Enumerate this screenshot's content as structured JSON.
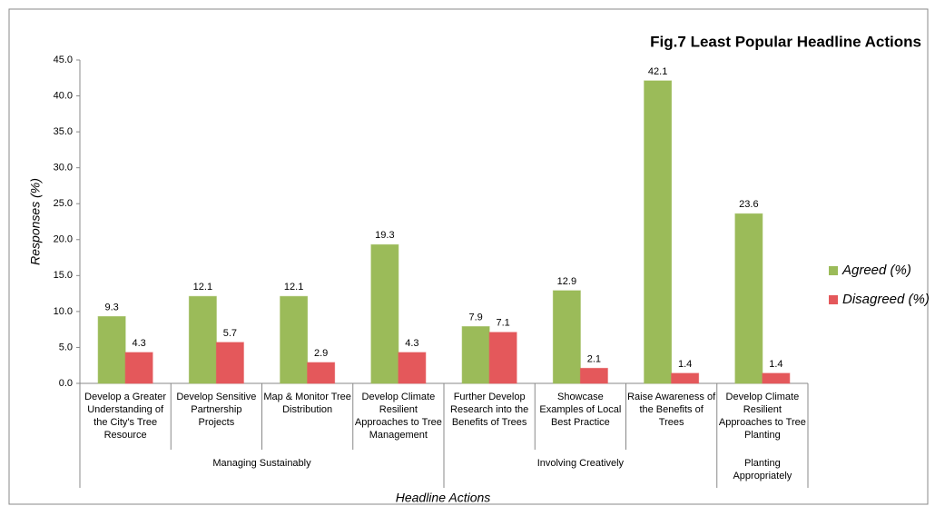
{
  "chart_data": {
    "type": "bar",
    "title": "Fig.7 Least Popular Headline Actions",
    "y_label": "Responses (%)",
    "x_label": "Headline Actions",
    "categories": [
      "Develop a Greater Understanding of the City's Tree Resource",
      "Develop Sensitive Partnership Projects",
      "Map & Monitor Tree Distribution",
      "Develop Climate Resilient Approaches to Tree Management",
      "Further Develop Research into the Benefits of Trees",
      "Showcase Examples of Local Best Practice",
      "Raise Awareness of the Benefits of Trees",
      "Develop Climate Resilient Approaches to Tree Planting"
    ],
    "groups": [
      {
        "label": "Managing Sustainably",
        "size": 4
      },
      {
        "label": "Involving Creatively",
        "size": 3
      },
      {
        "label": "Planting Appropriately",
        "size": 1
      }
    ],
    "series": [
      {
        "name": "Agreed (%)",
        "color": "#9bbb59",
        "values": [
          9.3,
          12.1,
          12.1,
          19.3,
          7.9,
          12.9,
          42.1,
          23.6
        ]
      },
      {
        "name": "Disagreed (%)",
        "color": "#e4585b",
        "values": [
          4.3,
          5.7,
          2.9,
          4.3,
          7.1,
          2.1,
          1.4,
          1.4
        ]
      }
    ],
    "ylim": [
      0,
      45
    ],
    "yticks": [
      {
        "value": 0,
        "label": "0.0"
      },
      {
        "value": 5,
        "label": "5.0"
      },
      {
        "value": 10,
        "label": "10.0"
      },
      {
        "value": 15,
        "label": "15.0"
      },
      {
        "value": 20,
        "label": "20.0"
      },
      {
        "value": 25,
        "label": "25.0"
      },
      {
        "value": 30,
        "label": "30.0"
      },
      {
        "value": 35,
        "label": "35.0"
      },
      {
        "value": 40,
        "label": "40.0"
      },
      {
        "value": 45,
        "label": "45.0"
      }
    ],
    "grid": false,
    "legend": "right"
  }
}
